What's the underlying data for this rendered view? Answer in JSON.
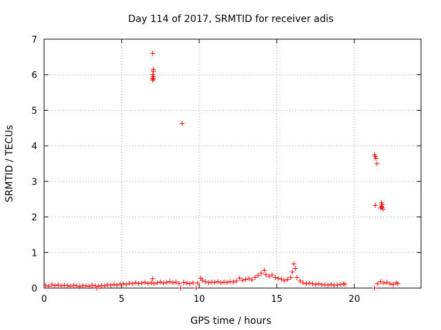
{
  "chart_data": {
    "type": "scatter",
    "title": "Day 114 of 2017, SRMTID for receiver adis",
    "xlabel": "GPS time / hours",
    "ylabel": "SRMTID / TECUs",
    "xlim": [
      0,
      24.3
    ],
    "ylim": [
      0,
      7
    ],
    "xticks": [
      0,
      5,
      10,
      15,
      20
    ],
    "yticks": [
      0,
      1,
      2,
      3,
      4,
      5,
      6,
      7
    ],
    "grid": true,
    "marker": "plus",
    "color": "#ff0000",
    "series": [
      {
        "name": "SRMTID",
        "points": [
          [
            0.1,
            0.08
          ],
          [
            0.3,
            0.05
          ],
          [
            0.5,
            0.1
          ],
          [
            0.7,
            0.07
          ],
          [
            0.9,
            0.09
          ],
          [
            1.1,
            0.06
          ],
          [
            1.3,
            0.08
          ],
          [
            1.5,
            0.07
          ],
          [
            1.7,
            0.05
          ],
          [
            1.9,
            0.08
          ],
          [
            2.1,
            0.06
          ],
          [
            2.3,
            0.04
          ],
          [
            2.5,
            0.07
          ],
          [
            2.7,
            0.06
          ],
          [
            2.9,
            0.05
          ],
          [
            3.1,
            0.08
          ],
          [
            3.3,
            0.06
          ],
          [
            3.4,
            0.0
          ],
          [
            3.5,
            0.05
          ],
          [
            3.7,
            0.07
          ],
          [
            3.9,
            0.06
          ],
          [
            4.1,
            0.09
          ],
          [
            4.3,
            0.08
          ],
          [
            4.5,
            0.1
          ],
          [
            4.7,
            0.08
          ],
          [
            4.9,
            0.11
          ],
          [
            5.1,
            0.12
          ],
          [
            5.3,
            0.1
          ],
          [
            5.5,
            0.13
          ],
          [
            5.7,
            0.12
          ],
          [
            5.9,
            0.15
          ],
          [
            6.1,
            0.13
          ],
          [
            6.3,
            0.14
          ],
          [
            6.5,
            0.16
          ],
          [
            6.7,
            0.13
          ],
          [
            6.9,
            0.15
          ],
          [
            7.0,
            0.26
          ],
          [
            7.1,
            0.12
          ],
          [
            7.3,
            0.15
          ],
          [
            7.5,
            0.17
          ],
          [
            7.7,
            0.14
          ],
          [
            7.9,
            0.16
          ],
          [
            8.1,
            0.18
          ],
          [
            8.3,
            0.15
          ],
          [
            8.5,
            0.17
          ],
          [
            8.7,
            0.13
          ],
          [
            8.8,
            0.0
          ],
          [
            9.0,
            0.16
          ],
          [
            9.2,
            0.14
          ],
          [
            9.4,
            0.12
          ],
          [
            9.6,
            0.15
          ],
          [
            9.8,
            0.0
          ],
          [
            9.9,
            0.14
          ],
          [
            10.1,
            0.28
          ],
          [
            10.2,
            0.22
          ],
          [
            10.4,
            0.18
          ],
          [
            10.6,
            0.15
          ],
          [
            10.8,
            0.17
          ],
          [
            11.0,
            0.16
          ],
          [
            11.2,
            0.18
          ],
          [
            11.4,
            0.15
          ],
          [
            11.6,
            0.17
          ],
          [
            11.8,
            0.16
          ],
          [
            12.0,
            0.18
          ],
          [
            12.2,
            0.17
          ],
          [
            12.4,
            0.2
          ],
          [
            12.6,
            0.28
          ],
          [
            12.8,
            0.22
          ],
          [
            13.0,
            0.24
          ],
          [
            13.2,
            0.27
          ],
          [
            13.4,
            0.23
          ],
          [
            13.6,
            0.3
          ],
          [
            13.8,
            0.36
          ],
          [
            14.0,
            0.42
          ],
          [
            14.2,
            0.5
          ],
          [
            14.3,
            0.38
          ],
          [
            14.5,
            0.33
          ],
          [
            14.7,
            0.37
          ],
          [
            14.9,
            0.3
          ],
          [
            15.1,
            0.27
          ],
          [
            15.3,
            0.25
          ],
          [
            15.5,
            0.21
          ],
          [
            15.7,
            0.24
          ],
          [
            15.9,
            0.3
          ],
          [
            16.0,
            0.45
          ],
          [
            16.1,
            0.68
          ],
          [
            16.2,
            0.55
          ],
          [
            16.3,
            0.3
          ],
          [
            16.5,
            0.2
          ],
          [
            16.7,
            0.15
          ],
          [
            16.9,
            0.12
          ],
          [
            17.1,
            0.14
          ],
          [
            17.3,
            0.12
          ],
          [
            17.5,
            0.1
          ],
          [
            17.7,
            0.12
          ],
          [
            17.9,
            0.1
          ],
          [
            18.1,
            0.09
          ],
          [
            18.3,
            0.08
          ],
          [
            18.5,
            0.1
          ],
          [
            18.7,
            0.08
          ],
          [
            18.9,
            0.09
          ],
          [
            19.1,
            0.1
          ],
          [
            19.3,
            0.12
          ],
          [
            19.4,
            0.11
          ],
          [
            21.3,
            0.0
          ],
          [
            21.5,
            0.12
          ],
          [
            21.7,
            0.18
          ],
          [
            21.9,
            0.14
          ],
          [
            22.1,
            0.16
          ],
          [
            22.3,
            0.12
          ],
          [
            22.5,
            0.1
          ],
          [
            22.7,
            0.15
          ],
          [
            22.8,
            0.12
          ],
          [
            7.0,
            5.85
          ],
          [
            7.0,
            5.9
          ],
          [
            7.05,
            5.95
          ],
          [
            7.0,
            6.0
          ],
          [
            7.05,
            6.1
          ],
          [
            7.05,
            6.15
          ],
          [
            7.0,
            6.6
          ],
          [
            7.05,
            5.88
          ],
          [
            8.9,
            4.63
          ],
          [
            21.3,
            3.75
          ],
          [
            21.35,
            3.7
          ],
          [
            21.4,
            3.65
          ],
          [
            21.45,
            3.5
          ],
          [
            21.35,
            2.33
          ],
          [
            21.7,
            2.25
          ],
          [
            21.75,
            2.3
          ],
          [
            21.8,
            2.35
          ],
          [
            21.75,
            2.4
          ],
          [
            21.8,
            2.28
          ],
          [
            21.85,
            2.22
          ]
        ]
      }
    ]
  }
}
